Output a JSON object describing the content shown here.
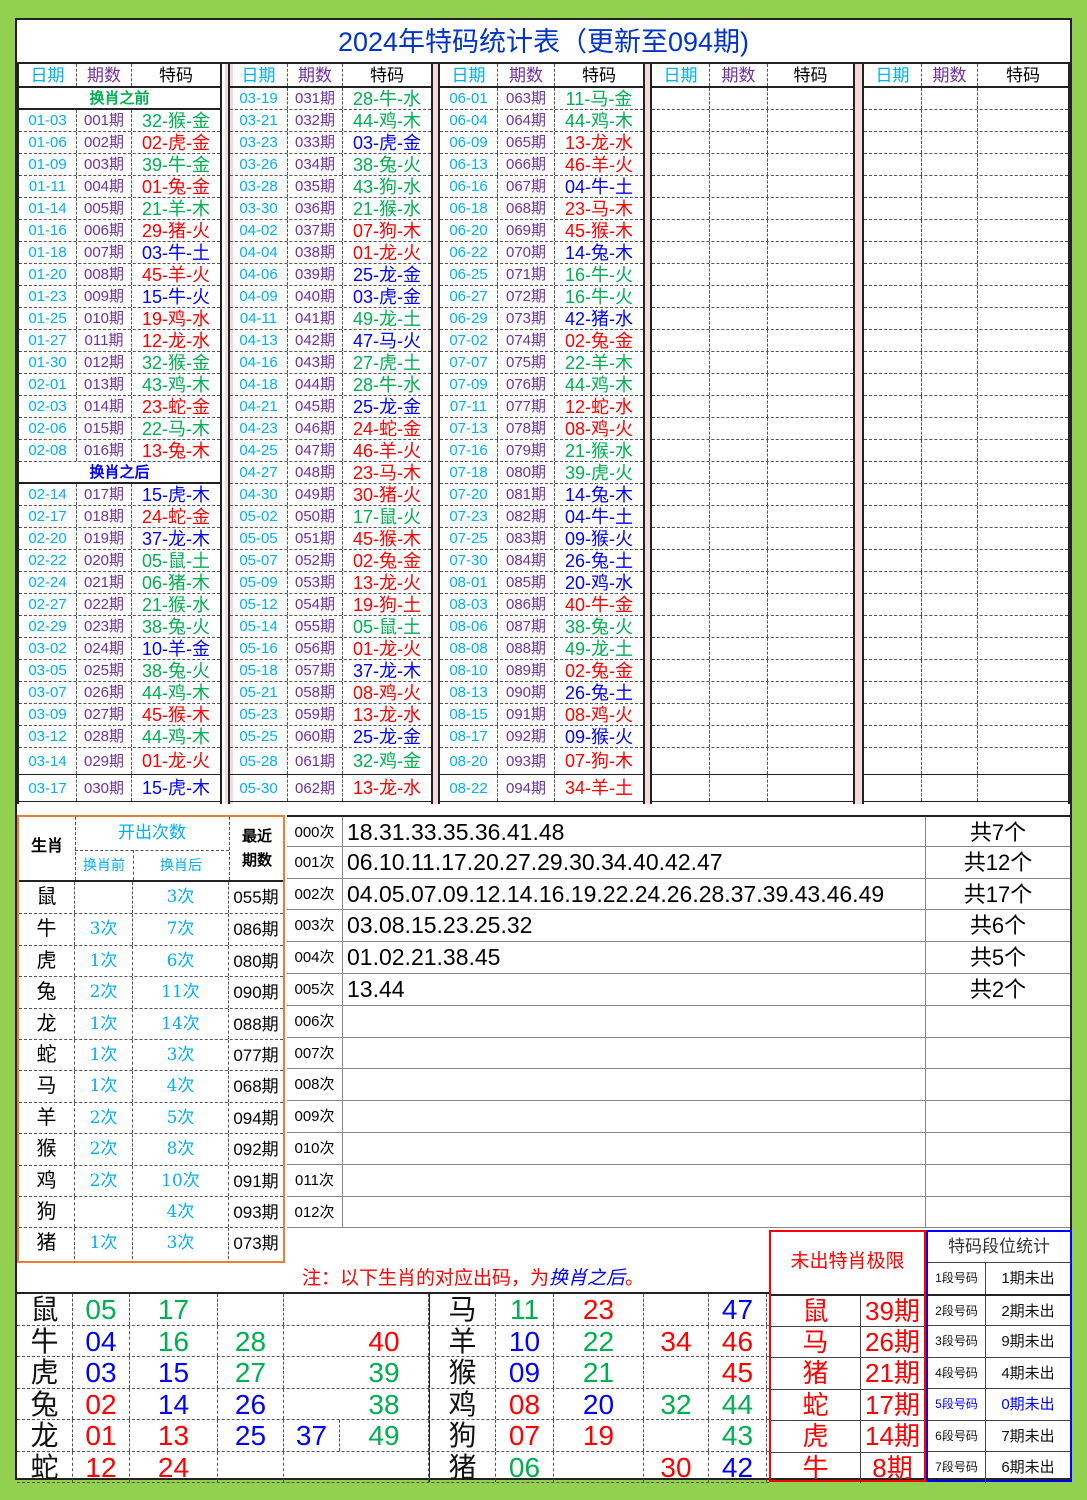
{
  "title": "2024年特码统计表（更新至094期)",
  "colors": {
    "red": "#ff0000",
    "blue": "#0000ff",
    "green": "#00b050",
    "date": "#00b0f0",
    "period": "#7030a0"
  },
  "waves": {
    "red": [
      "01",
      "02",
      "07",
      "08",
      "12",
      "13",
      "18",
      "19",
      "23",
      "24",
      "29",
      "30",
      "34",
      "35",
      "40",
      "45",
      "46"
    ],
    "blue": [
      "03",
      "04",
      "09",
      "10",
      "14",
      "15",
      "20",
      "25",
      "26",
      "31",
      "36",
      "37",
      "41",
      "42",
      "47",
      "48"
    ],
    "green": [
      "05",
      "06",
      "11",
      "16",
      "17",
      "21",
      "22",
      "27",
      "28",
      "32",
      "33",
      "38",
      "39",
      "43",
      "44",
      "49"
    ]
  },
  "top": {
    "headers": {
      "date": "日期",
      "period": "期数",
      "code": "特码"
    },
    "groups": [
      {
        "rows": [
          {
            "label": "换肖之前",
            "color": "#00b050"
          },
          [
            "01-03",
            "001期",
            "32-猴-金"
          ],
          [
            "01-06",
            "002期",
            "02-虎-金"
          ],
          [
            "01-09",
            "003期",
            "39-牛-金"
          ],
          [
            "01-11",
            "004期",
            "01-兔-金"
          ],
          [
            "01-14",
            "005期",
            "21-羊-木"
          ],
          [
            "01-16",
            "006期",
            "29-猪-火"
          ],
          [
            "01-18",
            "007期",
            "03-牛-土"
          ],
          [
            "01-20",
            "008期",
            "45-羊-火"
          ],
          [
            "01-23",
            "009期",
            "15-牛-火"
          ],
          [
            "01-25",
            "010期",
            "19-鸡-水"
          ],
          [
            "01-27",
            "011期",
            "12-龙-水"
          ],
          [
            "01-30",
            "012期",
            "32-猴-金"
          ],
          [
            "02-01",
            "013期",
            "43-鸡-木"
          ],
          [
            "02-03",
            "014期",
            "23-蛇-金"
          ],
          [
            "02-06",
            "015期",
            "22-马-木"
          ],
          [
            "02-08",
            "016期",
            "13-兔-木"
          ],
          {
            "label": "换肖之后",
            "color": "#0000ff"
          },
          [
            "02-14",
            "017期",
            "15-虎-木"
          ],
          [
            "02-17",
            "018期",
            "24-蛇-金"
          ],
          [
            "02-20",
            "019期",
            "37-龙-木"
          ],
          [
            "02-22",
            "020期",
            "05-鼠-土"
          ],
          [
            "02-24",
            "021期",
            "06-猪-木"
          ],
          [
            "02-27",
            "022期",
            "21-猴-水"
          ],
          [
            "02-29",
            "023期",
            "38-兔-火"
          ],
          [
            "03-02",
            "024期",
            "10-羊-金"
          ],
          [
            "03-05",
            "025期",
            "38-兔-火"
          ],
          [
            "03-07",
            "026期",
            "44-鸡-木"
          ],
          [
            "03-09",
            "027期",
            "45-猴-木"
          ],
          [
            "03-12",
            "028期",
            "44-鸡-木"
          ],
          [
            "03-14",
            "029期",
            "01-龙-火"
          ],
          [
            "03-17",
            "030期",
            "15-虎-木"
          ]
        ]
      },
      {
        "rows": [
          [
            "03-19",
            "031期",
            "28-牛-水"
          ],
          [
            "03-21",
            "032期",
            "44-鸡-木"
          ],
          [
            "03-23",
            "033期",
            "03-虎-金"
          ],
          [
            "03-26",
            "034期",
            "38-兔-火"
          ],
          [
            "03-28",
            "035期",
            "43-狗-水"
          ],
          [
            "03-30",
            "036期",
            "21-猴-水"
          ],
          [
            "04-02",
            "037期",
            "07-狗-木"
          ],
          [
            "04-04",
            "038期",
            "01-龙-火"
          ],
          [
            "04-06",
            "039期",
            "25-龙-金"
          ],
          [
            "04-09",
            "040期",
            "03-虎-金"
          ],
          [
            "04-11",
            "041期",
            "49-龙-土"
          ],
          [
            "04-13",
            "042期",
            "47-马-火"
          ],
          [
            "04-16",
            "043期",
            "27-虎-土"
          ],
          [
            "04-18",
            "044期",
            "28-牛-水"
          ],
          [
            "04-21",
            "045期",
            "25-龙-金"
          ],
          [
            "04-23",
            "046期",
            "24-蛇-金"
          ],
          [
            "04-25",
            "047期",
            "46-羊-火"
          ],
          [
            "04-27",
            "048期",
            "23-马-木"
          ],
          [
            "04-30",
            "049期",
            "30-猪-火"
          ],
          [
            "05-02",
            "050期",
            "17-鼠-火"
          ],
          [
            "05-05",
            "051期",
            "45-猴-木"
          ],
          [
            "05-07",
            "052期",
            "02-兔-金"
          ],
          [
            "05-09",
            "053期",
            "13-龙-火"
          ],
          [
            "05-12",
            "054期",
            "19-狗-土"
          ],
          [
            "05-14",
            "055期",
            "05-鼠-土"
          ],
          [
            "05-16",
            "056期",
            "01-龙-火"
          ],
          [
            "05-18",
            "057期",
            "37-龙-木"
          ],
          [
            "05-21",
            "058期",
            "08-鸡-火"
          ],
          [
            "05-23",
            "059期",
            "13-龙-水"
          ],
          [
            "05-25",
            "060期",
            "25-龙-金"
          ],
          [
            "05-28",
            "061期",
            "32-鸡-金"
          ],
          [
            "05-30",
            "062期",
            "13-龙-水"
          ]
        ]
      },
      {
        "rows": [
          [
            "06-01",
            "063期",
            "11-马-金"
          ],
          [
            "06-04",
            "064期",
            "44-鸡-木"
          ],
          [
            "06-09",
            "065期",
            "13-龙-水"
          ],
          [
            "06-13",
            "066期",
            "46-羊-火"
          ],
          [
            "06-16",
            "067期",
            "04-牛-土"
          ],
          [
            "06-18",
            "068期",
            "23-马-木"
          ],
          [
            "06-20",
            "069期",
            "45-猴-木"
          ],
          [
            "06-22",
            "070期",
            "14-兔-木"
          ],
          [
            "06-25",
            "071期",
            "16-牛-火"
          ],
          [
            "06-27",
            "072期",
            "16-牛-火"
          ],
          [
            "06-29",
            "073期",
            "42-猪-水"
          ],
          [
            "07-02",
            "074期",
            "02-兔-金"
          ],
          [
            "07-07",
            "075期",
            "22-羊-木"
          ],
          [
            "07-09",
            "076期",
            "44-鸡-木"
          ],
          [
            "07-11",
            "077期",
            "12-蛇-水"
          ],
          [
            "07-13",
            "078期",
            "08-鸡-火"
          ],
          [
            "07-16",
            "079期",
            "21-猴-水"
          ],
          [
            "07-18",
            "080期",
            "39-虎-火"
          ],
          [
            "07-20",
            "081期",
            "14-兔-木"
          ],
          [
            "07-23",
            "082期",
            "04-牛-土"
          ],
          [
            "07-25",
            "083期",
            "09-猴-火"
          ],
          [
            "07-30",
            "084期",
            "26-兔-土"
          ],
          [
            "08-01",
            "085期",
            "20-鸡-水"
          ],
          [
            "08-03",
            "086期",
            "40-牛-金"
          ],
          [
            "08-06",
            "087期",
            "38-兔-火"
          ],
          [
            "08-08",
            "088期",
            "49-龙-土"
          ],
          [
            "08-10",
            "089期",
            "02-兔-金"
          ],
          [
            "08-13",
            "090期",
            "26-兔-土"
          ],
          [
            "08-15",
            "091期",
            "08-鸡-火"
          ],
          [
            "08-17",
            "092期",
            "09-猴-火"
          ],
          [
            "08-20",
            "093期",
            "07-狗-木"
          ],
          [
            "08-22",
            "094期",
            "34-羊-土"
          ]
        ]
      },
      {
        "rows": []
      },
      {
        "rows": []
      }
    ]
  },
  "zodiac_stats": {
    "header": {
      "zodiac": "生肖",
      "count": "开出次数",
      "before": "换肖前",
      "after": "换肖后",
      "recent": "最近",
      "recent2": "期数"
    },
    "rows": [
      [
        "鼠",
        "",
        "3次",
        "055期"
      ],
      [
        "牛",
        "3次",
        "7次",
        "086期"
      ],
      [
        "虎",
        "1次",
        "6次",
        "080期"
      ],
      [
        "兔",
        "2次",
        "11次",
        "090期"
      ],
      [
        "龙",
        "1次",
        "14次",
        "088期"
      ],
      [
        "蛇",
        "1次",
        "3次",
        "077期"
      ],
      [
        "马",
        "1次",
        "4次",
        "068期"
      ],
      [
        "羊",
        "2次",
        "5次",
        "094期"
      ],
      [
        "猴",
        "2次",
        "8次",
        "092期"
      ],
      [
        "鸡",
        "2次",
        "10次",
        "091期"
      ],
      [
        "狗",
        "",
        "4次",
        "093期"
      ],
      [
        "猪",
        "1次",
        "3次",
        "073期"
      ]
    ]
  },
  "miss_counts": [
    [
      "000次",
      "18.31.33.35.36.41.48",
      "共7个"
    ],
    [
      "001次",
      "06.10.11.17.20.27.29.30.34.40.42.47",
      "共12个"
    ],
    [
      "002次",
      "04.05.07.09.12.14.16.19.22.24.26.28.37.39.43.46.49",
      "共17个"
    ],
    [
      "003次",
      "03.08.15.23.25.32",
      "共6个"
    ],
    [
      "004次",
      "01.02.21.38.45",
      "共5个"
    ],
    [
      "005次",
      "13.44",
      "共2个"
    ],
    [
      "006次",
      "",
      ""
    ],
    [
      "007次",
      "",
      ""
    ],
    [
      "008次",
      "",
      ""
    ],
    [
      "009次",
      "",
      ""
    ],
    [
      "010次",
      "",
      ""
    ],
    [
      "011次",
      "",
      ""
    ],
    [
      "012次",
      "",
      ""
    ]
  ],
  "note": {
    "prefix": "注：以下生肖的对应出码，为",
    "emph": "换肖之后",
    "suffix": "。"
  },
  "zodiac_numbers": {
    "left": [
      [
        "鼠",
        "05",
        "17",
        "",
        "",
        ""
      ],
      [
        "牛",
        "04",
        "16",
        "28",
        "",
        "40"
      ],
      [
        "虎",
        "03",
        "15",
        "27",
        "",
        "39"
      ],
      [
        "兔",
        "02",
        "14",
        "26",
        "",
        "38"
      ],
      [
        "龙",
        "01",
        "13",
        "25",
        "37",
        "49"
      ],
      [
        "蛇",
        "12",
        "24",
        "",
        "",
        ""
      ]
    ],
    "right": [
      [
        "马",
        "11",
        "23",
        "",
        "47"
      ],
      [
        "羊",
        "10",
        "22",
        "34",
        "46"
      ],
      [
        "猴",
        "09",
        "21",
        "",
        "45"
      ],
      [
        "鸡",
        "08",
        "20",
        "32",
        "44"
      ],
      [
        "狗",
        "07",
        "19",
        "",
        "43"
      ],
      [
        "猪",
        "06",
        "",
        "30",
        "42"
      ]
    ]
  },
  "max_missing": {
    "title": "未出特肖极限",
    "rows": [
      [
        "鼠",
        "39期"
      ],
      [
        "马",
        "26期"
      ],
      [
        "猪",
        "21期"
      ],
      [
        "蛇",
        "17期"
      ],
      [
        "虎",
        "14期"
      ],
      [
        "牛",
        "8期"
      ]
    ]
  },
  "segments": {
    "title": "特码段位统计",
    "rows": [
      [
        "1段号码",
        "1期未出"
      ],
      [
        "2段号码",
        "2期未出"
      ],
      [
        "3段号码",
        "9期未出"
      ],
      [
        "4段号码",
        "4期未出"
      ],
      [
        "5段号码",
        "0期未出",
        "#0000ff"
      ],
      [
        "6段号码",
        "7期未出"
      ],
      [
        "7段号码",
        "6期未出"
      ]
    ]
  }
}
